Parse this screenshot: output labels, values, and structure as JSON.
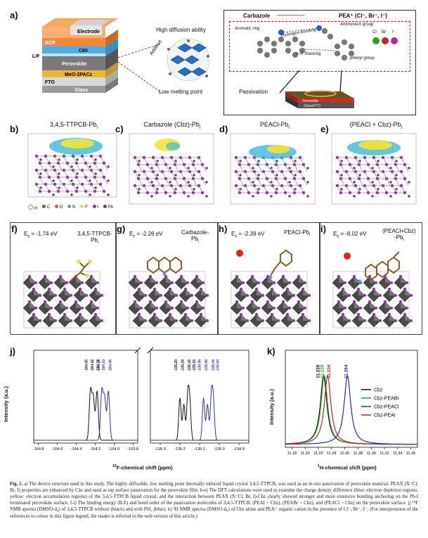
{
  "panels": {
    "a": {
      "label": "a)",
      "layers": [
        "Electrode",
        "BCP",
        "C60",
        "LiF",
        "Perovskite",
        "MeO-2PACz",
        "FTO",
        "Glass"
      ],
      "diffusion_top": "High diffusion ability",
      "diffusion_bottom": "Low melting point",
      "additive": "Additive",
      "carbazole": "Carbazole",
      "dashes": "------------------",
      "pea": "PEA⁺ (Cl⁻, Br⁻, I⁻)",
      "aromatic": "Aromatic ring",
      "hbond": "Hydrogen Bonding",
      "ammonium": "Ammonium group",
      "halides": [
        "Cl⁻",
        "Br⁻",
        "I⁻"
      ],
      "pistack": "π–π Stacking",
      "phenyl": "phenyl group",
      "passivation": "Passivation",
      "stack_labels": [
        "Perovskite",
        "Glass/FTO"
      ]
    },
    "b": {
      "label": "b)",
      "title": "3,4,5-TTPCB-Pb",
      "title_sub": "I",
      "legend": [
        "H",
        "C",
        "O",
        "N",
        "F",
        "I",
        "Pb"
      ]
    },
    "c": {
      "label": "c)",
      "title": "Carbazole (Cbz)-Pb",
      "title_sub": "I"
    },
    "d": {
      "label": "d)",
      "title": "PEACl-Pb",
      "title_sub": "I"
    },
    "e": {
      "label": "e)",
      "title": "(PEACl + Cbz)-Pb",
      "title_sub": "I"
    },
    "f": {
      "label": "f)",
      "eb": "E",
      "eb_sub": "b",
      "eb_val": " = -1.74 eV",
      "name1": "3,4,5-TTPCB-",
      "name2": "Pb",
      "name2_sub": "I"
    },
    "g": {
      "label": "g)",
      "eb": "E",
      "eb_sub": "b",
      "eb_val": " = -2.26 eV",
      "name1": "Carbazole-",
      "name2": "Pb",
      "name2_sub": "I"
    },
    "h": {
      "label": "h)",
      "eb": "E",
      "eb_sub": "b",
      "eb_val": " = -2.39 eV",
      "name1": "PEACl-Pb",
      "name1_sub": "I"
    },
    "i": {
      "label": "i)",
      "eb": "E",
      "eb_sub": "b",
      "eb_val": " = -8.02 eV",
      "name1": "(PEACl+Cbz)",
      "name2": "-Pb",
      "name2_sub": "I"
    }
  },
  "chart_data": [
    {
      "type": "line",
      "panel": "j)",
      "ylabel": "Intensity (a.u.)",
      "xlabel": "19F-chemical shift (ppm)",
      "xlabel_sup": "19",
      "xlabel_rest": "F-chemical shift (ppm)",
      "left_ticks": [
        "-164.8",
        "-164.6",
        "-164.4",
        "-164.2",
        "-164.0",
        "-163.8"
      ],
      "left_xlim": [
        -164.85,
        -163.75
      ],
      "right_ticks": [
        "-135.3",
        "-135.2",
        "-135.1",
        "-135.0",
        "-134.9"
      ],
      "right_xlim": [
        -135.35,
        -134.85
      ],
      "series": [
        {
          "color": "#111111",
          "peaks_left": [
            -164.25,
            -164.22,
            -164.18
          ],
          "peaks_right": [
            -135.2,
            -135.18,
            -135.16,
            -135.15
          ]
        },
        {
          "color": "#2b3a9c",
          "peaks_left": [
            -164.13,
            -164.1,
            -164.06
          ],
          "peaks_right": [
            -135.08,
            -135.06,
            -135.04,
            -135.03
          ]
        }
      ],
      "peak_labels_black": [
        "-164.25",
        "-164.22",
        "-164.18",
        "-135.20",
        "-135.18",
        "-135.16",
        "-135.15"
      ],
      "peak_labels_blue": [
        "-164.13",
        "-164.10",
        "-164.06",
        "-135.08",
        "-135.06",
        "-135.04",
        "-135.03"
      ]
    },
    {
      "type": "line",
      "panel": "k)",
      "ylabel": "Intensity (a.u.)",
      "xlabel": "1H-chemical shift (ppm)",
      "xlabel_sup": "1",
      "xlabel_rest": "H-chemical shift (ppm)",
      "xticks": [
        "11.18",
        "11.20",
        "11.22",
        "11.24",
        "11.26",
        "11.28",
        "11.30",
        "11.32",
        "11.34",
        "11.36"
      ],
      "xlim": [
        11.17,
        11.37
      ],
      "peak_labels": [
        {
          "text": "11.228",
          "color": "#111111",
          "x": 11.228
        },
        {
          "text": "11.229",
          "color": "#2aa52a",
          "x": 11.229
        },
        {
          "text": "11.234",
          "color": "#c0232a",
          "x": 11.234
        },
        {
          "text": "11.264",
          "color": "#2233aa",
          "x": 11.264
        }
      ],
      "series": [
        {
          "name": "Cbz",
          "color": "#111111",
          "center": 11.228
        },
        {
          "name": "Cbz-PEABr",
          "color": "#2aa52a",
          "center": 11.229
        },
        {
          "name": "Cbz-PEACl",
          "color": "#2233aa",
          "center": 11.264
        },
        {
          "name": "Cbz-PEAI",
          "color": "#c0232a",
          "center": 11.234
        }
      ]
    }
  ],
  "caption": {
    "fig": "Fig. 1.",
    "text": "a) The device structure used in this study. The highly diffusible, low melting point thermally induced liquid crystal 3,4,5-TTPCB, was used as an in-situ passivation of perovskite material. PEAX (X=Cl, Br, I) properties are enhanced by Cbz and used as top surface passivation for the perovskite film. b-e) The DFT calculations were used to examine the charge density difference (blue: electron depletion regions; yellow: electron accumulation regions) of the 3,4,5-TTPCB liquid crystal, and the interaction between PEAX (X=Cl, Br, I)-Cbz clearly showed stronger and more extensive bonding anchoring on the Pb-I terminated perovskite surface. f-i) The binding energy (B.E) and bond order of the passivation molecules of 3,4,5-TTPCB, (PEAI + Cbz), (PEABr + Cbz), and (PEACl + Cbz) on the perovskite surface. j) ¹⁹F NMR spectra (DMSO-d₆) of 3,4,5-TTPCB without (black) and with PbI₂ (blue). k) ¹H NMR spectra (DMSO-d₆) of Cbz alone and PEA⁺ organic cation in the presence of Cl⁻, Br⁻, I⁻. (For interpretation of the references to colour in this figure legend, the reader is referred to the web version of this article.)"
  }
}
